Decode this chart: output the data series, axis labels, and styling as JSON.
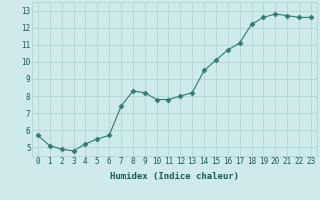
{
  "x": [
    0,
    1,
    2,
    3,
    4,
    5,
    6,
    7,
    8,
    9,
    10,
    11,
    12,
    13,
    14,
    15,
    16,
    17,
    18,
    19,
    20,
    21,
    22,
    23
  ],
  "y": [
    5.7,
    5.1,
    4.9,
    4.8,
    5.2,
    5.5,
    5.7,
    7.4,
    8.3,
    8.2,
    7.8,
    7.8,
    8.0,
    8.2,
    9.5,
    10.1,
    10.7,
    11.1,
    12.2,
    12.6,
    12.8,
    12.7,
    12.6,
    12.6
  ],
  "xlabel": "Humidex (Indice chaleur)",
  "xlim": [
    -0.5,
    23.5
  ],
  "ylim": [
    4.5,
    13.5
  ],
  "yticks": [
    5,
    6,
    7,
    8,
    9,
    10,
    11,
    12,
    13
  ],
  "xticks": [
    0,
    1,
    2,
    3,
    4,
    5,
    6,
    7,
    8,
    9,
    10,
    11,
    12,
    13,
    14,
    15,
    16,
    17,
    18,
    19,
    20,
    21,
    22,
    23
  ],
  "line_color": "#2e7d6e",
  "marker_color": "#2e7d6e",
  "marker_size": 2.5,
  "bg_color": "#ceeaea",
  "grid_color": "#b0cfcf",
  "label_color": "#1a5a5a",
  "tick_fontsize": 5.5,
  "xlabel_fontsize": 6.5
}
